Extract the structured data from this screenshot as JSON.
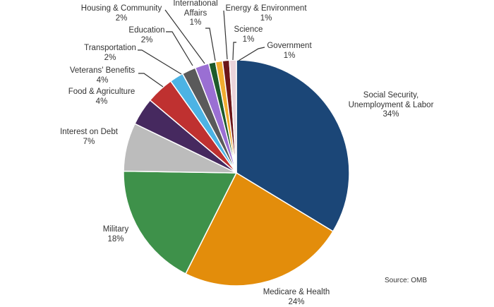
{
  "chart_data": {
    "type": "pie",
    "title": "",
    "start": "top",
    "direction": "clockwise",
    "slices": [
      {
        "label": "Social Security, Unemployment & Labor",
        "lines": [
          "Social Security,",
          "Unemployment & Labor"
        ],
        "value": 34,
        "pct": "34%",
        "color": "#1b4677"
      },
      {
        "label": "Medicare & Health",
        "lines": [
          "Medicare & Health"
        ],
        "value": 24,
        "pct": "24%",
        "color": "#e38d0b"
      },
      {
        "label": "Military",
        "lines": [
          "Military"
        ],
        "value": 18,
        "pct": "18%",
        "color": "#3e914a"
      },
      {
        "label": "Interest on Debt",
        "lines": [
          "Interest on Debt"
        ],
        "value": 7,
        "pct": "7%",
        "color": "#bcbcbc"
      },
      {
        "label": "Food & Agriculture",
        "lines": [
          "Food & Agriculture"
        ],
        "value": 4,
        "pct": "4%",
        "color": "#46295f"
      },
      {
        "label": "Veterans' Benefits",
        "lines": [
          "Veterans' Benefits"
        ],
        "value": 4,
        "pct": "4%",
        "color": "#bf3130"
      },
      {
        "label": "Transportation",
        "lines": [
          "Transportation"
        ],
        "value": 2,
        "pct": "2%",
        "color": "#4cb3e4"
      },
      {
        "label": "Education",
        "lines": [
          "Education"
        ],
        "value": 2,
        "pct": "2%",
        "color": "#5a5a5a"
      },
      {
        "label": "Housing & Community",
        "lines": [
          "Housing & Community"
        ],
        "value": 2,
        "pct": "2%",
        "color": "#9a6fd3"
      },
      {
        "label": "International Affairs",
        "lines": [
          "International",
          "Affairs"
        ],
        "value": 1,
        "pct": "1%",
        "color": "#1d5a2b"
      },
      {
        "label": "Energy & Environment",
        "lines": [
          "Energy & Environment"
        ],
        "value": 1,
        "pct": "1%",
        "color": "#f1ab2f"
      },
      {
        "label": "Science",
        "lines": [
          "Science"
        ],
        "value": 1,
        "pct": "1%",
        "color": "#6b1619"
      },
      {
        "label": "Government",
        "lines": [
          "Government"
        ],
        "value": 1,
        "pct": "1%",
        "color": "#ead3da"
      }
    ],
    "source": "Source: OMB"
  }
}
